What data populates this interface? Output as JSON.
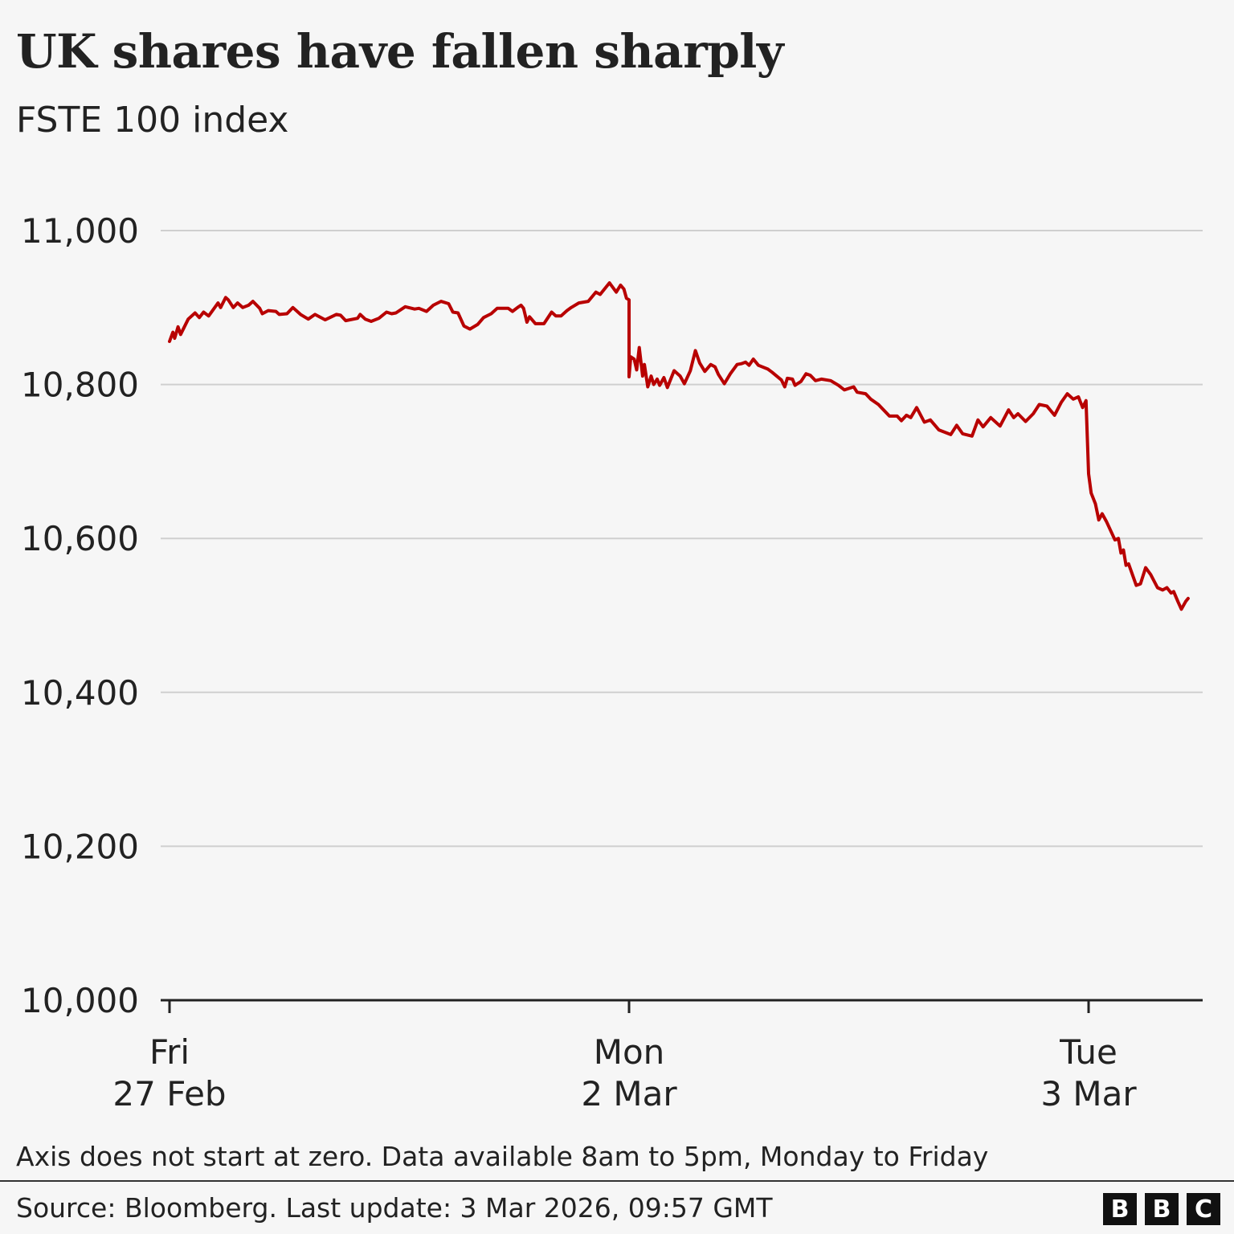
{
  "header": {
    "title": "UK shares have fallen sharply",
    "subtitle": "FSTE 100 index"
  },
  "chart_data": {
    "type": "line",
    "title": "UK shares have fallen sharply",
    "subtitle": "FSTE 100 index",
    "xlabel": "",
    "ylabel": "",
    "ylim": [
      10000,
      11000
    ],
    "yticks": [
      "10,000",
      "10,200",
      "10,400",
      "10,600",
      "10,800",
      "11,000"
    ],
    "ytick_values": [
      10000,
      10200,
      10400,
      10600,
      10800,
      11000
    ],
    "grid": true,
    "line_color": "#b80000",
    "trading_hours": [
      "08:00",
      "17:00"
    ],
    "days": [
      {
        "day": "Fri",
        "date": "27 Feb",
        "points": [
          [
            "08:00",
            10856
          ],
          [
            "08:04",
            10868
          ],
          [
            "08:06",
            10860
          ],
          [
            "08:10",
            10875
          ],
          [
            "08:13",
            10865
          ],
          [
            "08:22",
            10885
          ],
          [
            "08:30",
            10893
          ],
          [
            "08:35",
            10887
          ],
          [
            "08:40",
            10894
          ],
          [
            "08:46",
            10889
          ],
          [
            "08:57",
            10906
          ],
          [
            "09:00",
            10900
          ],
          [
            "09:06",
            10913
          ],
          [
            "09:09",
            10910
          ],
          [
            "09:15",
            10900
          ],
          [
            "09:20",
            10906
          ],
          [
            "09:26",
            10900
          ],
          [
            "09:33",
            10903
          ],
          [
            "09:38",
            10908
          ],
          [
            "09:46",
            10899
          ],
          [
            "09:49",
            10892
          ],
          [
            "09:56",
            10896
          ],
          [
            "10:05",
            10895
          ],
          [
            "10:09",
            10891
          ],
          [
            "10:18",
            10892
          ],
          [
            "10:25",
            10900
          ],
          [
            "10:34",
            10891
          ],
          [
            "10:43",
            10885
          ],
          [
            "10:51",
            10891
          ],
          [
            "11:03",
            10884
          ],
          [
            "11:16",
            10891
          ],
          [
            "11:21",
            10890
          ],
          [
            "11:27",
            10883
          ],
          [
            "11:41",
            10886
          ],
          [
            "11:44",
            10891
          ],
          [
            "11:50",
            10885
          ],
          [
            "11:57",
            10882
          ],
          [
            "12:06",
            10886
          ],
          [
            "12:15",
            10894
          ],
          [
            "12:21",
            10892
          ],
          [
            "12:26",
            10893
          ],
          [
            "12:37",
            10901
          ],
          [
            "12:48",
            10898
          ],
          [
            "12:53",
            10899
          ],
          [
            "13:02",
            10895
          ],
          [
            "13:10",
            10903
          ],
          [
            "13:19",
            10908
          ],
          [
            "13:28",
            10905
          ],
          [
            "13:33",
            10894
          ],
          [
            "13:39",
            10893
          ],
          [
            "13:46",
            10876
          ],
          [
            "13:53",
            10872
          ],
          [
            "14:02",
            10878
          ],
          [
            "14:09",
            10887
          ],
          [
            "14:18",
            10892
          ],
          [
            "14:25",
            10899
          ],
          [
            "14:38",
            10899
          ],
          [
            "14:43",
            10895
          ],
          [
            "14:49",
            10900
          ],
          [
            "14:53",
            10903
          ],
          [
            "14:56",
            10899
          ],
          [
            "15:00",
            10881
          ],
          [
            "15:03",
            10888
          ],
          [
            "15:10",
            10879
          ],
          [
            "15:20",
            10879
          ],
          [
            "15:29",
            10894
          ],
          [
            "15:34",
            10889
          ],
          [
            "15:40",
            10889
          ],
          [
            "15:47",
            10896
          ],
          [
            "15:52",
            10900
          ],
          [
            "16:01",
            10906
          ],
          [
            "16:12",
            10908
          ],
          [
            "16:21",
            10920
          ],
          [
            "16:26",
            10917
          ],
          [
            "16:37",
            10932
          ],
          [
            "16:45",
            10920
          ],
          [
            "16:50",
            10929
          ],
          [
            "16:54",
            10924
          ],
          [
            "16:57",
            10912
          ],
          [
            "17:00",
            10910
          ]
        ]
      },
      {
        "day": "Mon",
        "date": "2 Mar",
        "points": [
          [
            "08:00",
            10810
          ],
          [
            "08:02",
            10836
          ],
          [
            "08:06",
            10833
          ],
          [
            "08:09",
            10819
          ],
          [
            "08:12",
            10848
          ],
          [
            "08:16",
            10811
          ],
          [
            "08:18",
            10826
          ],
          [
            "08:22",
            10797
          ],
          [
            "08:26",
            10811
          ],
          [
            "08:29",
            10800
          ],
          [
            "08:33",
            10807
          ],
          [
            "08:36",
            10799
          ],
          [
            "08:41",
            10809
          ],
          [
            "08:45",
            10796
          ],
          [
            "08:53",
            10818
          ],
          [
            "09:00",
            10811
          ],
          [
            "09:05",
            10801
          ],
          [
            "09:12",
            10818
          ],
          [
            "09:18",
            10844
          ],
          [
            "09:23",
            10828
          ],
          [
            "09:29",
            10817
          ],
          [
            "09:36",
            10826
          ],
          [
            "09:41",
            10823
          ],
          [
            "09:45",
            10813
          ],
          [
            "09:52",
            10801
          ],
          [
            "09:59",
            10814
          ],
          [
            "10:07",
            10826
          ],
          [
            "10:12",
            10827
          ],
          [
            "10:17",
            10829
          ],
          [
            "10:21",
            10825
          ],
          [
            "10:26",
            10833
          ],
          [
            "10:32",
            10825
          ],
          [
            "10:43",
            10820
          ],
          [
            "10:48",
            10816
          ],
          [
            "10:59",
            10806
          ],
          [
            "11:03",
            10797
          ],
          [
            "11:06",
            10808
          ],
          [
            "11:12",
            10807
          ],
          [
            "11:15",
            10799
          ],
          [
            "11:22",
            10804
          ],
          [
            "11:28",
            10814
          ],
          [
            "11:33",
            10812
          ],
          [
            "11:39",
            10805
          ],
          [
            "11:46",
            10807
          ],
          [
            "11:57",
            10805
          ],
          [
            "12:06",
            10799
          ],
          [
            "12:13",
            10793
          ],
          [
            "12:24",
            10797
          ],
          [
            "12:28",
            10790
          ],
          [
            "12:38",
            10788
          ],
          [
            "12:44",
            10781
          ],
          [
            "12:53",
            10774
          ],
          [
            "13:06",
            10759
          ],
          [
            "13:15",
            10759
          ],
          [
            "13:20",
            10753
          ],
          [
            "13:26",
            10760
          ],
          [
            "13:31",
            10757
          ],
          [
            "13:38",
            10770
          ],
          [
            "13:47",
            10751
          ],
          [
            "13:54",
            10754
          ],
          [
            "14:04",
            10741
          ],
          [
            "14:18",
            10735
          ],
          [
            "14:25",
            10747
          ],
          [
            "14:32",
            10736
          ],
          [
            "14:43",
            10733
          ],
          [
            "14:50",
            10754
          ],
          [
            "14:56",
            10745
          ],
          [
            "15:05",
            10757
          ],
          [
            "15:16",
            10746
          ],
          [
            "15:26",
            10767
          ],
          [
            "15:32",
            10757
          ],
          [
            "15:37",
            10762
          ],
          [
            "15:46",
            10752
          ],
          [
            "15:55",
            10762
          ],
          [
            "16:02",
            10774
          ],
          [
            "16:11",
            10772
          ],
          [
            "16:20",
            10760
          ],
          [
            "16:28",
            10777
          ],
          [
            "16:35",
            10788
          ],
          [
            "16:42",
            10781
          ],
          [
            "16:48",
            10784
          ],
          [
            "16:53",
            10770
          ],
          [
            "16:57",
            10779
          ]
        ]
      },
      {
        "day": "Tue",
        "date": "3 Mar",
        "points": [
          [
            "08:00",
            10684
          ],
          [
            "08:03",
            10659
          ],
          [
            "08:08",
            10645
          ],
          [
            "08:12",
            10624
          ],
          [
            "08:16",
            10632
          ],
          [
            "08:21",
            10622
          ],
          [
            "08:26",
            10610
          ],
          [
            "08:31",
            10598
          ],
          [
            "08:35",
            10600
          ],
          [
            "08:38",
            10581
          ],
          [
            "08:41",
            10585
          ],
          [
            "08:44",
            10565
          ],
          [
            "08:47",
            10567
          ],
          [
            "08:56",
            10539
          ],
          [
            "09:01",
            10541
          ],
          [
            "09:07",
            10562
          ],
          [
            "09:13",
            10553
          ],
          [
            "09:21",
            10536
          ],
          [
            "09:27",
            10533
          ],
          [
            "09:32",
            10536
          ],
          [
            "09:37",
            10529
          ],
          [
            "09:40",
            10531
          ],
          [
            "09:45",
            10518
          ],
          [
            "09:49",
            10508
          ],
          [
            "09:54",
            10518
          ],
          [
            "09:57",
            10522
          ]
        ]
      }
    ]
  },
  "footer": {
    "note": "Axis does not start at zero. Data available 8am to 5pm, Monday to Friday",
    "source": "Source: Bloomberg. Last update: 3 Mar 2026, 09:57 GMT",
    "logo_letters": [
      "B",
      "B",
      "C"
    ]
  }
}
